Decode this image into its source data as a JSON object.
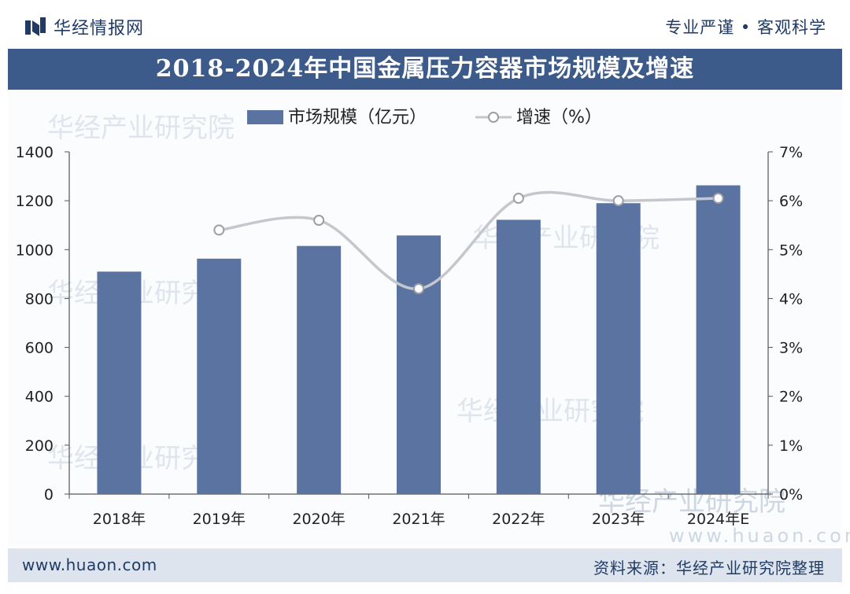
{
  "header": {
    "brand_name": "华经情报网",
    "slogan": "专业严谨 • 客观科学",
    "logo_icon": "huajing-logo-icon"
  },
  "title": "2018-2024年中国金属压力容器市场规模及增速",
  "watermark": {
    "text": "华经产业研究院",
    "url": "www.huaon.com"
  },
  "footer": {
    "url": "www.huaon.com",
    "source": "资料来源：华经产业研究院整理"
  },
  "colors": {
    "bar": "#5b73a1",
    "line": "#c4c7cc",
    "marker_fill": "#ffffff",
    "banner": "#3c5a8a",
    "text": "#1f3b66"
  },
  "chart_data": {
    "type": "bar",
    "title": "2018-2024年中国金属压力容器市场规模及增速",
    "categories": [
      "2018年",
      "2019年",
      "2020年",
      "2021年",
      "2022年",
      "2023年",
      "2024年E"
    ],
    "series": [
      {
        "name": "市场规模（亿元）",
        "type": "bar",
        "axis": "left",
        "values": [
          910,
          963,
          1015,
          1058,
          1122,
          1190,
          1263
        ]
      },
      {
        "name": "增速（%）",
        "type": "line",
        "axis": "right",
        "smooth": true,
        "values": [
          null,
          5.4,
          5.6,
          4.2,
          6.05,
          6.0,
          6.05
        ]
      }
    ],
    "y_left": {
      "ylim": [
        0,
        1400
      ],
      "ticks": [
        "0",
        "200",
        "400",
        "600",
        "800",
        "1000",
        "1200",
        "1400"
      ]
    },
    "y_right": {
      "ylim": [
        0,
        7
      ],
      "ticks": [
        "0%",
        "1%",
        "2%",
        "3%",
        "4%",
        "5%",
        "6%",
        "7%"
      ]
    },
    "grid": false,
    "legend": "top-center"
  }
}
